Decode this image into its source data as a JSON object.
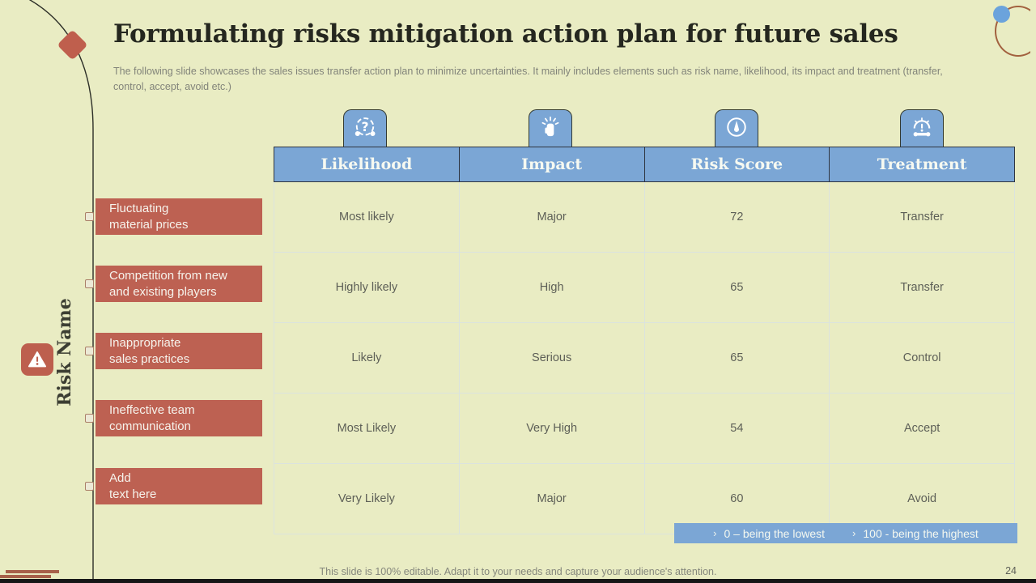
{
  "slide": {
    "title": "Formulating risks mitigation action plan for future sales",
    "subtitle": "The following slide showcases the sales issues transfer action plan to minimize uncertainties. It mainly includes elements such as risk name, likelihood, its impact and treatment (transfer, control, accept, avoid etc.)",
    "footer_note": "This slide is 100% editable. Adapt it to your needs and capture your audience's attention.",
    "page_number": "24"
  },
  "risk_axis": {
    "label": "Risk Name",
    "icon": "warning-triangle-icon",
    "items": [
      {
        "line1": "Fluctuating",
        "line2": "material prices"
      },
      {
        "line1": "Competition from new",
        "line2": "and existing players"
      },
      {
        "line1": "Inappropriate",
        "line2": "sales practices"
      },
      {
        "line1": "Ineffective  team",
        "line2": "communication"
      },
      {
        "line1": "Add",
        "line2": "text here"
      }
    ]
  },
  "table": {
    "columns": [
      {
        "label": "Likelihood",
        "icon": "uncertainty-question-icon"
      },
      {
        "label": "Impact",
        "icon": "impact-fist-icon"
      },
      {
        "label": "Risk Score",
        "icon": "gauge-icon"
      },
      {
        "label": "Treatment",
        "icon": "treatment-gauge-wrench-icon"
      }
    ],
    "rows": [
      [
        "Most likely",
        "Major",
        "72",
        "Transfer"
      ],
      [
        "Highly  likely",
        "High",
        "65",
        "Transfer"
      ],
      [
        "Likely",
        "Serious",
        "65",
        "Control"
      ],
      [
        "Most Likely",
        "Very High",
        "54",
        "Accept"
      ],
      [
        "Very Likely",
        "Major",
        "60",
        "Avoid"
      ]
    ]
  },
  "legend": {
    "items": [
      {
        "bullet": "›",
        "text": "0 – being the lowest"
      },
      {
        "bullet": "›",
        "text": "100 - being the highest"
      }
    ]
  },
  "colors": {
    "background": "#e9ecc3",
    "accent_blue": "#7ba6d5",
    "accent_terracotta": "#bd6152",
    "title_ink": "#25271f",
    "muted_text": "#82847a"
  }
}
